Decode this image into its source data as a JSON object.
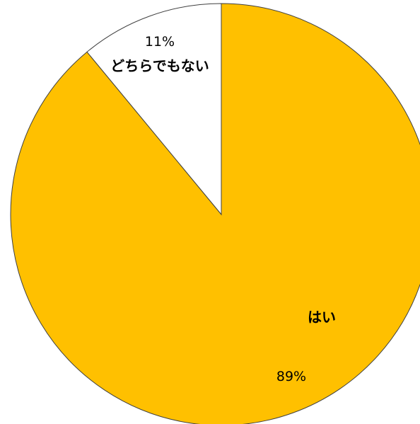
{
  "chart_data": {
    "type": "pie",
    "title": "",
    "legend": "none",
    "slices": [
      {
        "label": "はい",
        "value": 89,
        "value_label": "89%",
        "color": "#FFC000"
      },
      {
        "label": "どちらでもない",
        "value": 11,
        "value_label": "11%",
        "color": "#FFFFFF"
      }
    ],
    "outline_color": "#404040"
  }
}
